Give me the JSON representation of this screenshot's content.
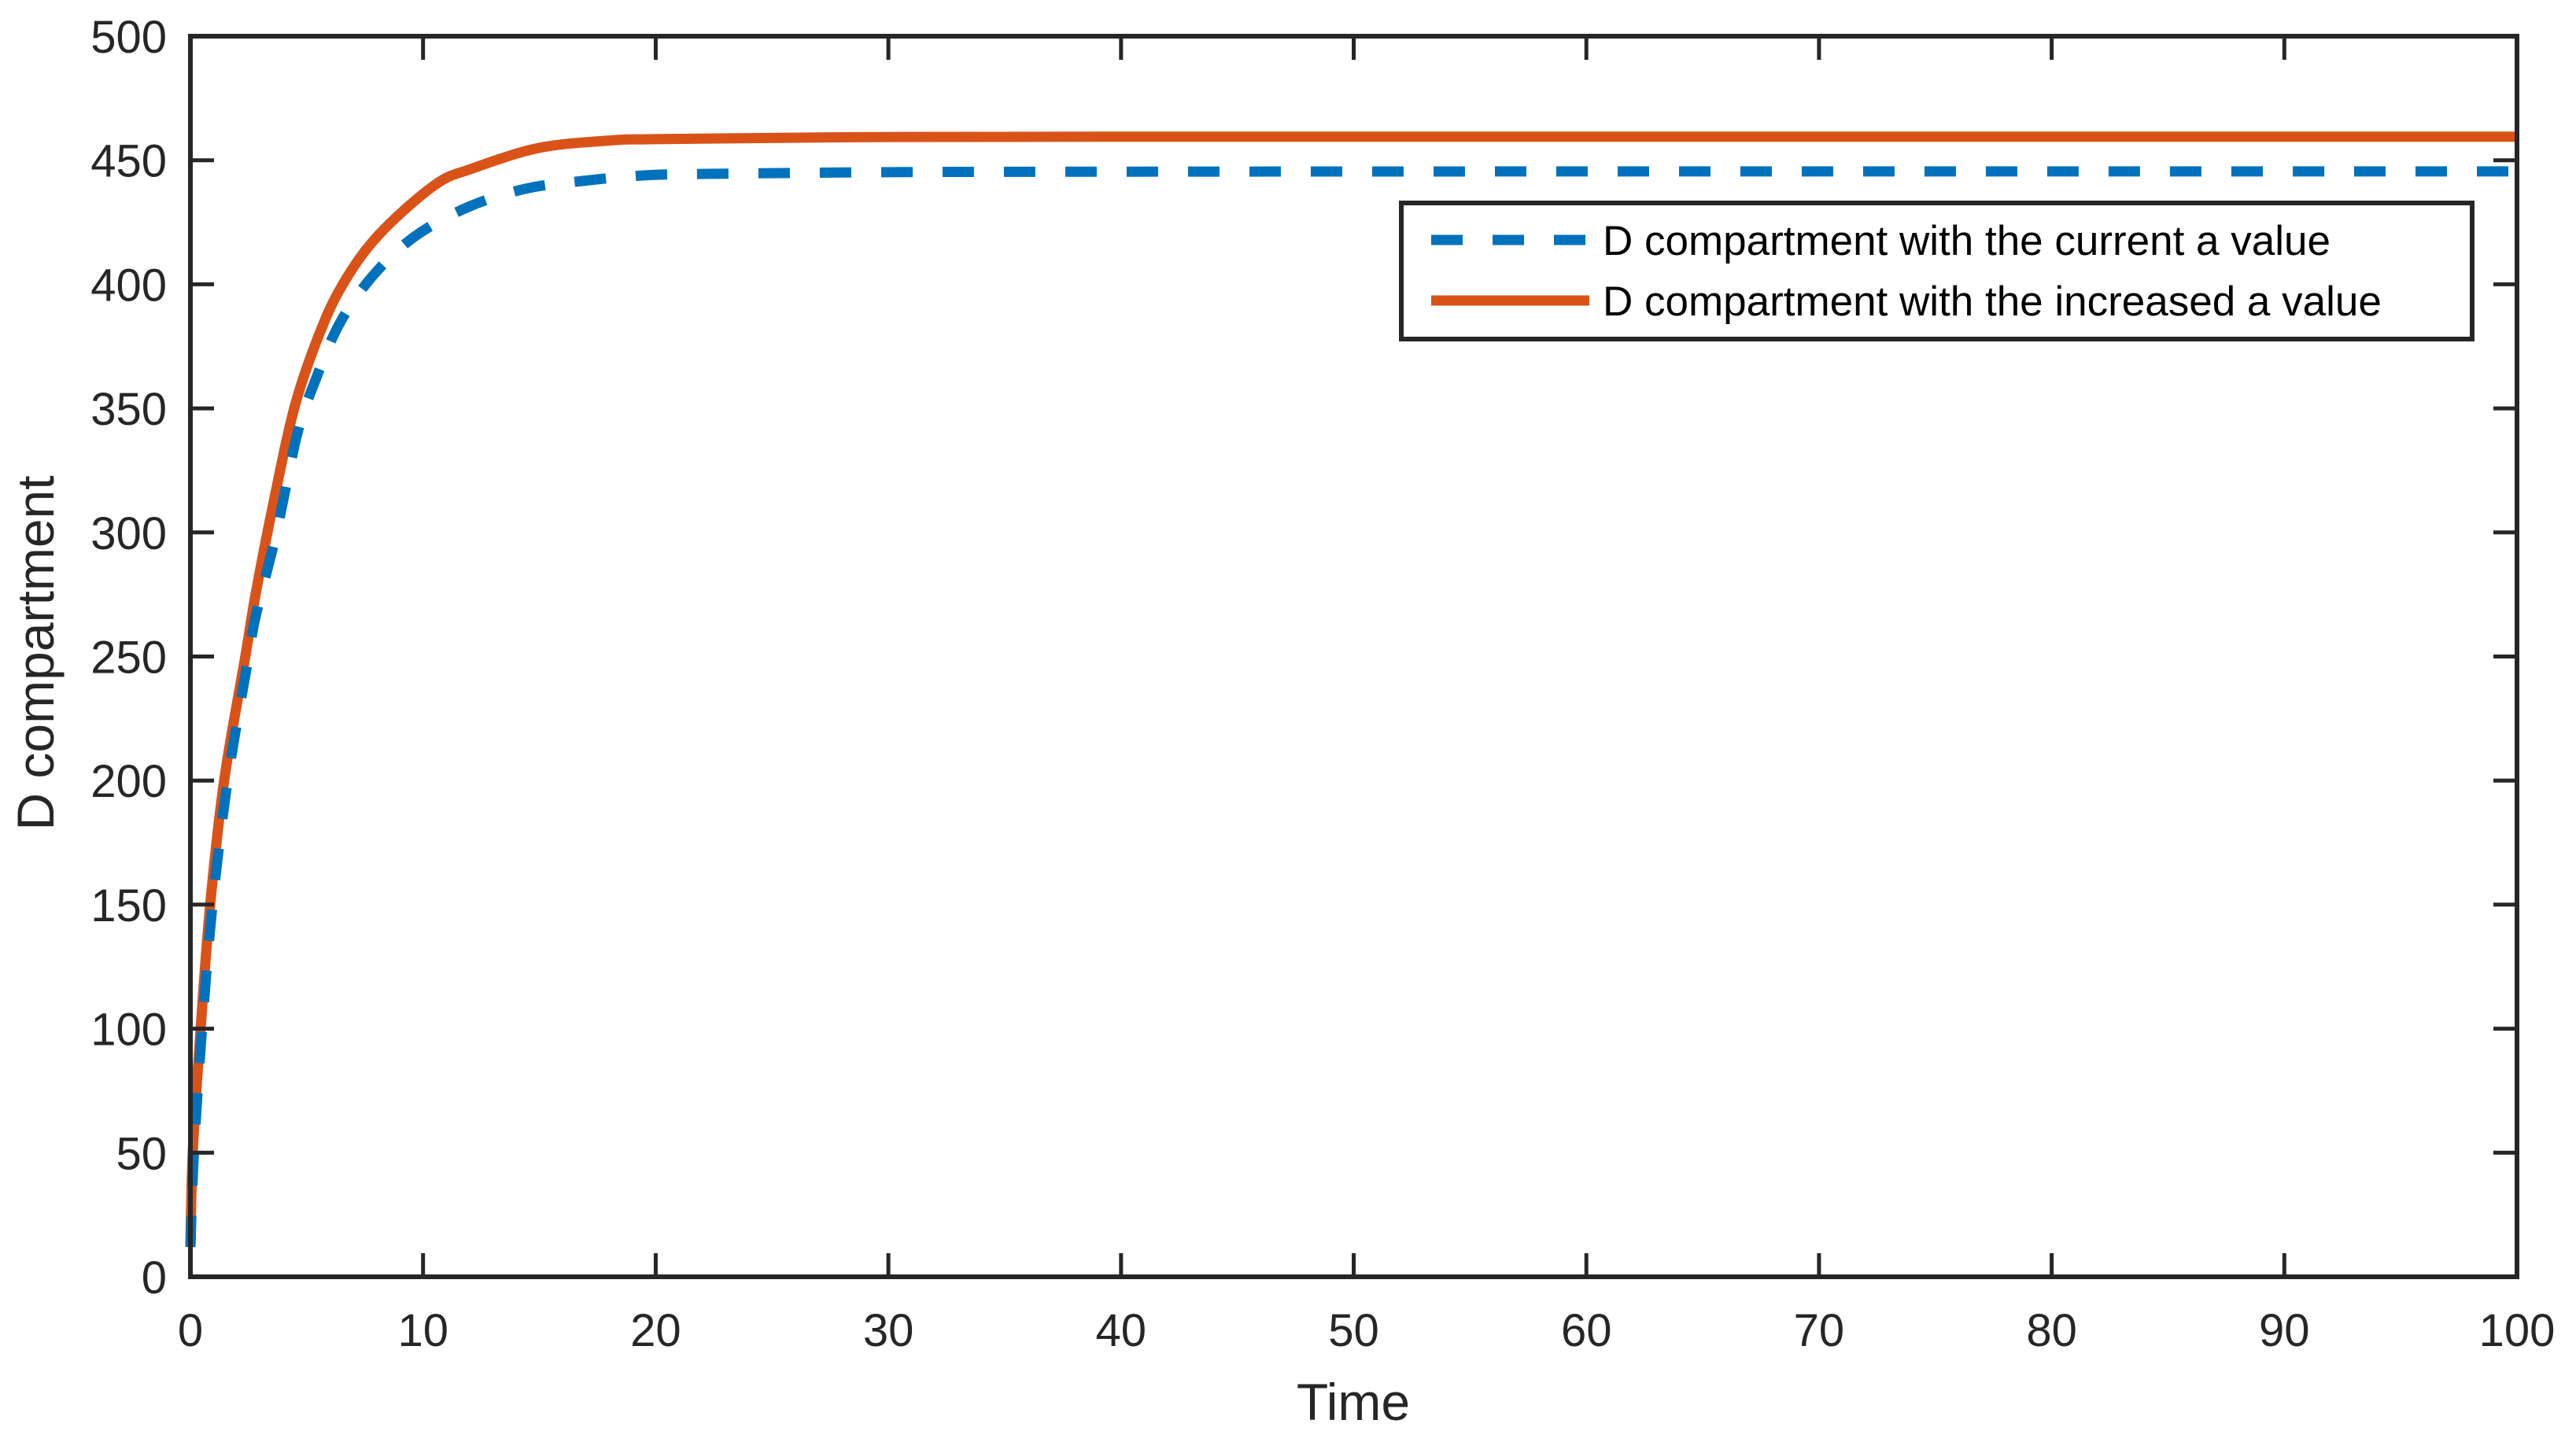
{
  "chart_data": {
    "type": "line",
    "title": "",
    "xlabel": "Time",
    "ylabel": "D compartment",
    "xlim": [
      0,
      100
    ],
    "ylim": [
      0,
      500
    ],
    "xticks": [
      0,
      10,
      20,
      30,
      40,
      50,
      60,
      70,
      80,
      90,
      100
    ],
    "yticks": [
      0,
      50,
      100,
      150,
      200,
      250,
      300,
      350,
      400,
      450,
      500
    ],
    "grid": false,
    "legend_position": "upper right (inside)",
    "series": [
      {
        "name": "D compartment with the current a value",
        "color": "#0072BD",
        "style": "dashed",
        "x": [
          0,
          0.15,
          0.5,
          0.95,
          1.6,
          2.5,
          2.8,
          3.7,
          4.6,
          5.4,
          6.4,
          7.8,
          9.6,
          11.9,
          14.4,
          16.9,
          19.5,
          22.2,
          30.2,
          40,
          60,
          80,
          100
        ],
        "y": [
          12,
          50,
          100,
          150,
          200,
          250,
          266,
          300,
          340,
          362,
          384,
          403,
          419,
          431,
          438.5,
          441.7,
          443.9,
          444.5,
          445.2,
          445.4,
          445.5,
          445.5,
          445.5
        ]
      },
      {
        "name": "D compartment with the increased a value",
        "color": "#D95319",
        "style": "solid",
        "x": [
          0,
          0.1,
          0.44,
          0.85,
          1.45,
          2.36,
          2.8,
          3.55,
          4.46,
          5.5,
          6.55,
          8.1,
          10.5,
          12.1,
          15,
          18.1,
          20,
          28.7,
          40,
          60,
          80,
          100
        ],
        "y": [
          12,
          50,
          100,
          150,
          200,
          250,
          275,
          311,
          350,
          379,
          400,
          420,
          440,
          446.6,
          455,
          458,
          458.5,
          459.3,
          459.5,
          459.5,
          459.5,
          459.5
        ]
      }
    ]
  },
  "axes": {
    "xlabel": "Time",
    "ylabel": "D compartment"
  },
  "legend": {
    "items": [
      {
        "label": "D compartment with the current a value"
      },
      {
        "label": "D compartment with the increased a value"
      }
    ]
  }
}
